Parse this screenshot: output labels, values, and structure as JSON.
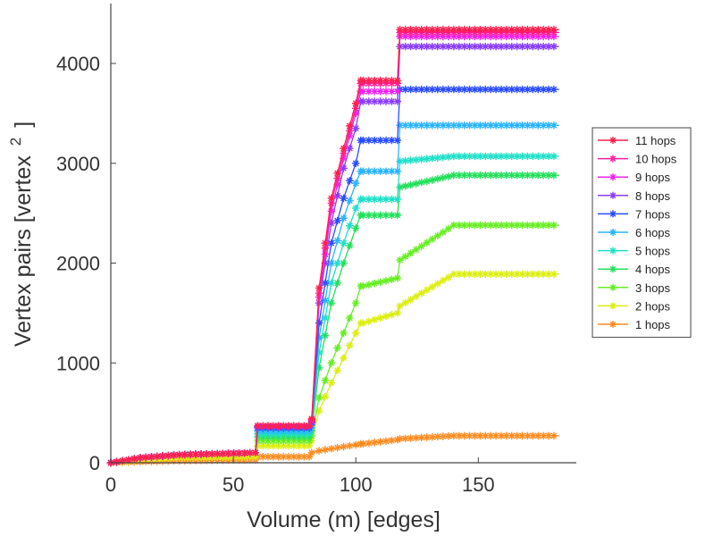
{
  "chart_data": {
    "type": "line",
    "title": "",
    "xlabel": "Volume (m) [edges]",
    "ylabel": "Vertex pairs [vertex",
    "ylabel_superscript": "2",
    "ylabel_suffix": "]",
    "xlim": [
      0,
      190
    ],
    "ylim": [
      0,
      4600
    ],
    "xticks": [
      0,
      50,
      100,
      150
    ],
    "yticks": [
      0,
      1000,
      2000,
      3000,
      4000
    ],
    "legend_position": "right",
    "grid": false,
    "series": [
      {
        "name": "11 hops",
        "color": "#ff2050",
        "x": [
          0,
          12,
          28,
          59,
          60,
          81,
          82,
          85,
          90,
          95,
          100,
          102,
          103,
          117,
          118,
          140,
          183
        ],
        "y": [
          0,
          50,
          80,
          100,
          370,
          370,
          440,
          1750,
          2650,
          3150,
          3600,
          3830,
          3830,
          3830,
          4340,
          4340,
          4340
        ]
      },
      {
        "name": "10 hops",
        "color": "#ff1fa0",
        "x": [
          0,
          12,
          28,
          59,
          60,
          81,
          82,
          85,
          90,
          95,
          100,
          102,
          103,
          117,
          118,
          140,
          183
        ],
        "y": [
          0,
          50,
          80,
          100,
          370,
          370,
          430,
          1700,
          2600,
          3100,
          3550,
          3800,
          3800,
          3800,
          4310,
          4310,
          4310
        ]
      },
      {
        "name": "9 hops",
        "color": "#ee22ee",
        "x": [
          0,
          12,
          28,
          59,
          60,
          81,
          82,
          85,
          90,
          95,
          100,
          102,
          103,
          117,
          118,
          140,
          183
        ],
        "y": [
          0,
          50,
          80,
          100,
          370,
          370,
          420,
          1660,
          2520,
          3050,
          3500,
          3720,
          3720,
          3720,
          4270,
          4270,
          4270
        ]
      },
      {
        "name": "8 hops",
        "color": "#8a3cff",
        "x": [
          0,
          12,
          28,
          59,
          60,
          81,
          82,
          85,
          90,
          95,
          100,
          102,
          103,
          117,
          118,
          140,
          183
        ],
        "y": [
          0,
          50,
          80,
          100,
          360,
          360,
          410,
          1600,
          2400,
          2950,
          3350,
          3620,
          3620,
          3620,
          4170,
          4170,
          4170
        ]
      },
      {
        "name": "7 hops",
        "color": "#2a4cff",
        "x": [
          0,
          12,
          28,
          59,
          60,
          81,
          82,
          85,
          90,
          95,
          100,
          102,
          103,
          117,
          118,
          140,
          183
        ],
        "y": [
          0,
          50,
          80,
          100,
          350,
          350,
          400,
          1400,
          2200,
          2650,
          3000,
          3230,
          3230,
          3230,
          3740,
          3740,
          3740
        ]
      },
      {
        "name": "6 hops",
        "color": "#2ab4ff",
        "x": [
          0,
          12,
          28,
          59,
          60,
          81,
          82,
          85,
          90,
          95,
          100,
          102,
          103,
          117,
          118,
          140,
          183
        ],
        "y": [
          0,
          50,
          80,
          100,
          320,
          320,
          380,
          1250,
          2000,
          2450,
          2800,
          2920,
          2920,
          2920,
          3380,
          3380,
          3380
        ]
      },
      {
        "name": "5 hops",
        "color": "#1fe0c8",
        "x": [
          0,
          12,
          28,
          59,
          60,
          81,
          82,
          85,
          90,
          95,
          100,
          102,
          103,
          117,
          118,
          140,
          183
        ],
        "y": [
          0,
          50,
          80,
          100,
          290,
          290,
          350,
          1100,
          1800,
          2200,
          2550,
          2640,
          2640,
          2640,
          3020,
          3070,
          3070
        ]
      },
      {
        "name": "4 hops",
        "color": "#22e05a",
        "x": [
          0,
          12,
          28,
          59,
          60,
          81,
          82,
          85,
          90,
          95,
          100,
          102,
          103,
          117,
          118,
          140,
          183
        ],
        "y": [
          0,
          50,
          80,
          100,
          260,
          260,
          320,
          950,
          1600,
          2000,
          2350,
          2480,
          2480,
          2480,
          2760,
          2880,
          2880
        ]
      },
      {
        "name": "3 hops",
        "color": "#66ee22",
        "x": [
          0,
          12,
          28,
          59,
          60,
          81,
          82,
          85,
          90,
          95,
          100,
          102,
          103,
          117,
          118,
          140,
          183
        ],
        "y": [
          0,
          50,
          80,
          100,
          220,
          220,
          270,
          650,
          1000,
          1300,
          1600,
          1770,
          1770,
          1850,
          2030,
          2380,
          2380
        ]
      },
      {
        "name": "2 hops",
        "color": "#ddee11",
        "x": [
          0,
          12,
          28,
          59,
          60,
          81,
          82,
          85,
          90,
          95,
          100,
          102,
          103,
          117,
          118,
          140,
          183
        ],
        "y": [
          0,
          30,
          50,
          60,
          170,
          170,
          220,
          520,
          800,
          1050,
          1300,
          1400,
          1400,
          1500,
          1570,
          1890,
          1890
        ]
      },
      {
        "name": "1 hops",
        "color": "#ff8c20",
        "x": [
          0,
          12,
          28,
          59,
          60,
          81,
          82,
          85,
          90,
          95,
          100,
          102,
          103,
          117,
          118,
          140,
          183
        ],
        "y": [
          0,
          10,
          20,
          30,
          60,
          60,
          100,
          120,
          140,
          160,
          180,
          190,
          190,
          230,
          240,
          270,
          270
        ]
      }
    ]
  }
}
